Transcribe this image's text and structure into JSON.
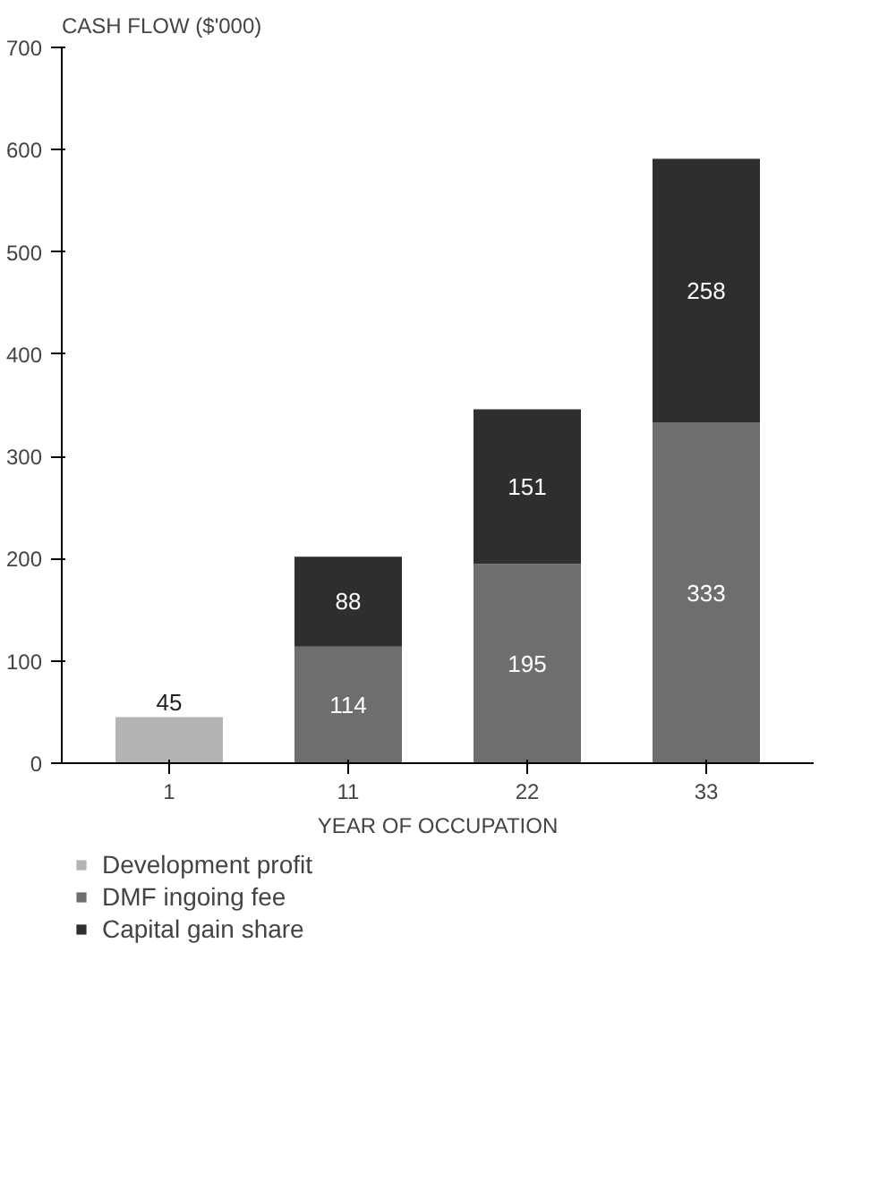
{
  "chart_data": {
    "type": "bar",
    "stacked": true,
    "ylabel": "CASH FLOW ($'000)",
    "xlabel": "YEAR OF OCCUPATION",
    "categories": [
      "1",
      "11",
      "22",
      "33"
    ],
    "series": [
      {
        "name": "Development profit",
        "color": "#b4b4b4",
        "values": [
          45,
          null,
          null,
          null
        ]
      },
      {
        "name": "DMF ingoing fee",
        "color": "#6e6e6e",
        "values": [
          null,
          114,
          195,
          333
        ]
      },
      {
        "name": "Capital gain share",
        "color": "#2e2e2e",
        "values": [
          null,
          88,
          151,
          258
        ]
      }
    ],
    "ylim": [
      0,
      700
    ],
    "yticks": [
      0,
      100,
      200,
      300,
      400,
      500,
      600,
      700
    ],
    "grid": false,
    "legend": "bottom",
    "data_labels": true
  }
}
